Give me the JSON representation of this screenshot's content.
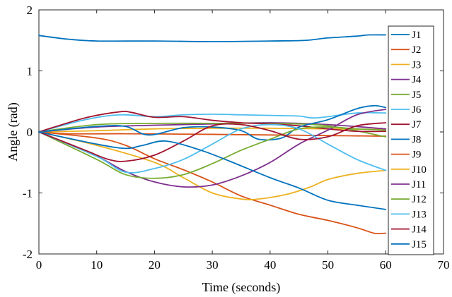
{
  "chart_data": {
    "type": "line",
    "title": "",
    "xlabel": "Time (seconds)",
    "ylabel": "Angle (rad)",
    "xlim": [
      0,
      70
    ],
    "ylim": [
      -2,
      2
    ],
    "xticks": [
      "0",
      "10",
      "20",
      "30",
      "40",
      "50",
      "60",
      "70"
    ],
    "yticks": [
      "-2",
      "-1",
      "0",
      "1",
      "2"
    ],
    "grid": false,
    "legend_position": "right",
    "series": [
      {
        "name": "J1",
        "color": "#0072BD",
        "points": [
          [
            0,
            1.58
          ],
          [
            5,
            1.52
          ],
          [
            10,
            1.49
          ],
          [
            20,
            1.49
          ],
          [
            30,
            1.48
          ],
          [
            40,
            1.49
          ],
          [
            46,
            1.5
          ],
          [
            50,
            1.54
          ],
          [
            55,
            1.57
          ],
          [
            57,
            1.59
          ],
          [
            60,
            1.59
          ]
        ]
      },
      {
        "name": "J2",
        "color": "#D95319",
        "points": [
          [
            0,
            0
          ],
          [
            5,
            -0.03
          ],
          [
            15,
            -0.03
          ],
          [
            30,
            -0.04
          ],
          [
            40,
            -0.05
          ],
          [
            50,
            -0.06
          ],
          [
            60,
            -0.07
          ]
        ]
      },
      {
        "name": "J3",
        "color": "#EDB120",
        "points": [
          [
            0,
            0
          ],
          [
            10,
            0.02
          ],
          [
            20,
            0.05
          ],
          [
            30,
            0.06
          ],
          [
            40,
            0.06
          ],
          [
            50,
            0.05
          ],
          [
            60,
            0.04
          ]
        ]
      },
      {
        "name": "J4",
        "color": "#7E2F8E",
        "points": [
          [
            0,
            0
          ],
          [
            10,
            0.08
          ],
          [
            20,
            0.11
          ],
          [
            30,
            0.13
          ],
          [
            40,
            0.15
          ],
          [
            50,
            0.12
          ],
          [
            60,
            0.05
          ]
        ]
      },
      {
        "name": "J5",
        "color": "#77AC30",
        "points": [
          [
            0,
            0
          ],
          [
            10,
            0.12
          ],
          [
            20,
            0.14
          ],
          [
            30,
            0.14
          ],
          [
            40,
            0.14
          ],
          [
            50,
            0.1
          ],
          [
            60,
            -0.08
          ]
        ]
      },
      {
        "name": "J6",
        "color": "#4DBEEE",
        "points": [
          [
            0,
            0
          ],
          [
            8,
            0.2
          ],
          [
            14,
            0.28
          ],
          [
            20,
            0.25
          ],
          [
            25,
            0.28
          ],
          [
            30,
            0.29
          ],
          [
            35,
            0.28
          ],
          [
            40,
            0.27
          ],
          [
            45,
            0.26
          ],
          [
            48,
            0.23
          ],
          [
            55,
            0.31
          ],
          [
            60,
            0.31
          ]
        ]
      },
      {
        "name": "J7",
        "color": "#A2142F",
        "points": [
          [
            0,
            0
          ],
          [
            8,
            0.23
          ],
          [
            14,
            0.33
          ],
          [
            16,
            0.32
          ],
          [
            20,
            0.24
          ],
          [
            25,
            0.25
          ],
          [
            30,
            0.19
          ],
          [
            35,
            0.15
          ],
          [
            40,
            0.13
          ],
          [
            45,
            0.1
          ],
          [
            50,
            0.05
          ],
          [
            55,
            0.01
          ],
          [
            60,
            0.01
          ]
        ]
      },
      {
        "name": "J8",
        "color": "#0072BD",
        "points": [
          [
            0,
            0
          ],
          [
            10,
            0.09
          ],
          [
            15,
            0.09
          ],
          [
            19,
            -0.05
          ],
          [
            25,
            0.07
          ],
          [
            30,
            0.08
          ],
          [
            35,
            0.02
          ],
          [
            38,
            -0.12
          ],
          [
            42,
            -0.1
          ],
          [
            45,
            0.08
          ],
          [
            50,
            0.2
          ],
          [
            55,
            0.38
          ],
          [
            58,
            0.43
          ],
          [
            60,
            0.4
          ]
        ]
      },
      {
        "name": "J9",
        "color": "#D95319",
        "points": [
          [
            0,
            0
          ],
          [
            10,
            -0.1
          ],
          [
            15,
            -0.22
          ],
          [
            20,
            -0.44
          ],
          [
            25,
            -0.62
          ],
          [
            30,
            -0.82
          ],
          [
            35,
            -1.05
          ],
          [
            40,
            -1.2
          ],
          [
            45,
            -1.35
          ],
          [
            50,
            -1.45
          ],
          [
            55,
            -1.57
          ],
          [
            58,
            -1.66
          ],
          [
            60,
            -1.66
          ]
        ]
      },
      {
        "name": "J10",
        "color": "#EDB120",
        "points": [
          [
            0,
            0
          ],
          [
            10,
            -0.22
          ],
          [
            20,
            -0.5
          ],
          [
            25,
            -0.75
          ],
          [
            30,
            -1.0
          ],
          [
            35,
            -1.1
          ],
          [
            38,
            -1.1
          ],
          [
            43,
            -1.02
          ],
          [
            47,
            -0.9
          ],
          [
            50,
            -0.78
          ],
          [
            55,
            -0.68
          ],
          [
            60,
            -0.63
          ]
        ]
      },
      {
        "name": "J11",
        "color": "#7E2F8E",
        "points": [
          [
            0,
            0
          ],
          [
            10,
            -0.4
          ],
          [
            15,
            -0.65
          ],
          [
            20,
            -0.82
          ],
          [
            25,
            -0.9
          ],
          [
            30,
            -0.87
          ],
          [
            35,
            -0.72
          ],
          [
            40,
            -0.5
          ],
          [
            45,
            -0.2
          ],
          [
            50,
            0.03
          ],
          [
            55,
            0.28
          ],
          [
            60,
            0.37
          ]
        ]
      },
      {
        "name": "J12",
        "color": "#77AC30",
        "points": [
          [
            0,
            0
          ],
          [
            10,
            -0.45
          ],
          [
            15,
            -0.7
          ],
          [
            20,
            -0.76
          ],
          [
            25,
            -0.7
          ],
          [
            30,
            -0.52
          ],
          [
            35,
            -0.3
          ],
          [
            40,
            -0.12
          ],
          [
            45,
            0.05
          ],
          [
            50,
            0.08
          ],
          [
            55,
            0.05
          ],
          [
            60,
            0.03
          ]
        ]
      },
      {
        "name": "J13",
        "color": "#4DBEEE",
        "points": [
          [
            0,
            0
          ],
          [
            10,
            -0.4
          ],
          [
            15,
            -0.66
          ],
          [
            20,
            -0.6
          ],
          [
            25,
            -0.45
          ],
          [
            30,
            -0.2
          ],
          [
            35,
            0.05
          ],
          [
            40,
            0.12
          ],
          [
            45,
            0.05
          ],
          [
            50,
            -0.2
          ],
          [
            55,
            -0.45
          ],
          [
            60,
            -0.63
          ]
        ]
      },
      {
        "name": "J14",
        "color": "#A2142F",
        "points": [
          [
            0,
            0
          ],
          [
            8,
            -0.3
          ],
          [
            12,
            -0.45
          ],
          [
            15,
            -0.48
          ],
          [
            20,
            -0.38
          ],
          [
            25,
            -0.15
          ],
          [
            30,
            0.1
          ],
          [
            35,
            0.12
          ],
          [
            40,
            0.02
          ],
          [
            45,
            -0.12
          ],
          [
            50,
            -0.08
          ],
          [
            55,
            0.1
          ],
          [
            60,
            0.15
          ]
        ]
      },
      {
        "name": "J15",
        "color": "#0072BD",
        "points": [
          [
            0,
            0
          ],
          [
            10,
            -0.2
          ],
          [
            15,
            -0.27
          ],
          [
            18,
            -0.22
          ],
          [
            22,
            -0.15
          ],
          [
            28,
            -0.3
          ],
          [
            33,
            -0.48
          ],
          [
            40,
            -0.75
          ],
          [
            45,
            -0.92
          ],
          [
            50,
            -1.12
          ],
          [
            55,
            -1.2
          ],
          [
            60,
            -1.27
          ]
        ]
      }
    ]
  }
}
